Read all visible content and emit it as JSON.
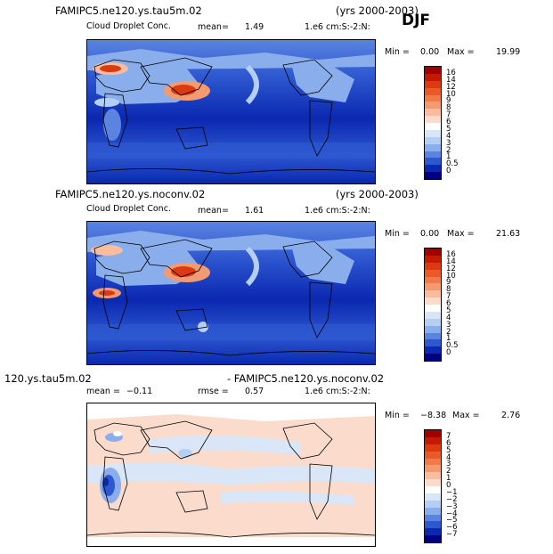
{
  "season": "DJF",
  "panels": [
    {
      "case_title": "FAMIPC5.ne120.ys.tau5m.02",
      "years": "(yrs 2000-2003)",
      "var_name": "Cloud Droplet Conc.",
      "stat1_label": "mean=",
      "stat1_value": "1.49",
      "stat2_label": "",
      "stat2_value": "",
      "units": "1.e6 cm:S:-2:N:",
      "min_label": "Min =",
      "min_value": "0.00",
      "max_label": "Max =",
      "max_value": "19.99",
      "cbar_labels": [
        "16",
        "14",
        "12",
        "10",
        "9",
        "8",
        "7",
        "6",
        "5",
        "4",
        "3",
        "2",
        "1",
        "0.5",
        "0"
      ],
      "cbar_colors": [
        "#a00000",
        "#c41a00",
        "#dc3a10",
        "#ea5a28",
        "#f07a48",
        "#f49a70",
        "#f8bca0",
        "#fbdccc",
        "#ffffff",
        "#d8e6f8",
        "#b4cef4",
        "#8aaeec",
        "#5a84e0",
        "#2e58d0",
        "#0a28b0",
        "#000080"
      ]
    },
    {
      "case_title": "FAMIPC5.ne120.ys.noconv.02",
      "years": "(yrs 2000-2003)",
      "var_name": "Cloud Droplet Conc.",
      "stat1_label": "mean=",
      "stat1_value": "1.61",
      "stat2_label": "",
      "stat2_value": "",
      "units": "1.e6 cm:S:-2:N:",
      "min_label": "Min =",
      "min_value": "0.00",
      "max_label": "Max =",
      "max_value": "21.63",
      "cbar_labels": [
        "16",
        "14",
        "12",
        "10",
        "9",
        "8",
        "7",
        "6",
        "5",
        "4",
        "3",
        "2",
        "1",
        "0.5",
        "0"
      ],
      "cbar_colors": [
        "#a00000",
        "#c41a00",
        "#dc3a10",
        "#ea5a28",
        "#f07a48",
        "#f49a70",
        "#f8bca0",
        "#fbdccc",
        "#ffffff",
        "#d8e6f8",
        "#b4cef4",
        "#8aaeec",
        "#5a84e0",
        "#2e58d0",
        "#0a28b0",
        "#000080"
      ]
    },
    {
      "case_title": "120.ys.tau5m.02",
      "years": "- FAMIPC5.ne120.ys.noconv.02",
      "var_name": "",
      "stat1_label": "mean =",
      "stat1_value": "−0.11",
      "stat2_label": "rmse =",
      "stat2_value": "0.57",
      "units": "1.e6 cm:S:-2:N:",
      "min_label": "Min =",
      "min_value": "−8.38",
      "max_label": "Max =",
      "max_value": "2.76",
      "cbar_labels": [
        "7",
        "6",
        "5",
        "4",
        "3",
        "2",
        "1",
        "0",
        "−1",
        "−2",
        "−3",
        "−4",
        "−5",
        "−6",
        "−7"
      ],
      "cbar_colors": [
        "#a00000",
        "#c41a00",
        "#dc3a10",
        "#ea5a28",
        "#f07a48",
        "#f49a70",
        "#f8bca0",
        "#fbdccc",
        "#ffffff",
        "#d8e6f8",
        "#b4cef4",
        "#8aaeec",
        "#5a84e0",
        "#2e58d0",
        "#0a28b0",
        "#000080"
      ]
    }
  ],
  "chart_data": [
    {
      "type": "heatmap",
      "title": "FAMIPC5.ne120.ys.tau5m.02",
      "subtitle": "Cloud Droplet Conc.",
      "season": "DJF",
      "years": "(yrs 2000-2003)",
      "units": "1.e6 cm:S:-2:N:",
      "mean": 1.49,
      "min": 0.0,
      "max": 19.99,
      "levels": [
        0,
        0.5,
        1,
        2,
        3,
        4,
        5,
        6,
        7,
        8,
        9,
        10,
        12,
        14,
        16
      ]
    },
    {
      "type": "heatmap",
      "title": "FAMIPC5.ne120.ys.noconv.02",
      "subtitle": "Cloud Droplet Conc.",
      "season": "DJF",
      "years": "(yrs 2000-2003)",
      "units": "1.e6 cm:S:-2:N:",
      "mean": 1.61,
      "min": 0.0,
      "max": 21.63,
      "levels": [
        0,
        0.5,
        1,
        2,
        3,
        4,
        5,
        6,
        7,
        8,
        9,
        10,
        12,
        14,
        16
      ]
    },
    {
      "type": "heatmap",
      "title": "120.ys.tau5m.02 - FAMIPC5.ne120.ys.noconv.02",
      "season": "DJF",
      "units": "1.e6 cm:S:-2:N:",
      "mean": -0.11,
      "rmse": 0.57,
      "min": -8.38,
      "max": 2.76,
      "levels": [
        -7,
        -6,
        -5,
        -4,
        -3,
        -2,
        -1,
        0,
        1,
        2,
        3,
        4,
        5,
        6,
        7
      ]
    }
  ]
}
